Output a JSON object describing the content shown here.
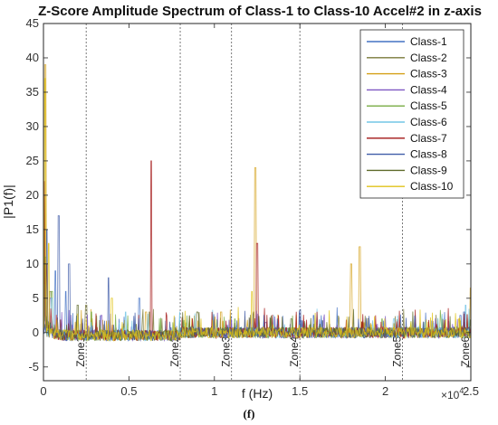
{
  "chart_data": {
    "type": "line",
    "title": "Z-Score Amplitude Spectrum of Class-1 to Class-10 Accel#2 in z-axis",
    "xlabel": "f (Hz)",
    "ylabel": "|P1(f)|",
    "x_multiplier": "×10",
    "x_multiplier_exp": "4",
    "xlim": [
      0,
      2.5
    ],
    "ylim": [
      -7,
      45
    ],
    "xticks": [
      0,
      0.5,
      1,
      1.5,
      2,
      2.5
    ],
    "xtick_labels": [
      "0",
      "0.5",
      "1",
      "1.5",
      "2",
      "2.5"
    ],
    "yticks": [
      -5,
      0,
      5,
      10,
      15,
      20,
      25,
      30,
      35,
      40,
      45
    ],
    "ytick_labels": [
      "-5",
      "0",
      "5",
      "10",
      "15",
      "20",
      "25",
      "30",
      "35",
      "40",
      "45"
    ],
    "grid": false,
    "legend_position": "top-right",
    "zones": [
      {
        "label": "Zone1",
        "x": 0.25
      },
      {
        "label": "Zone2",
        "x": 0.8
      },
      {
        "label": "Zone3",
        "x": 1.1
      },
      {
        "label": "Zone4",
        "x": 1.5
      },
      {
        "label": "Zone5",
        "x": 2.1
      },
      {
        "label": "Zone6",
        "x": 2.5
      }
    ],
    "series": [
      {
        "name": "Class-1",
        "color": "#4472c4",
        "peaks": [
          [
            0.002,
            12
          ],
          [
            0.07,
            9
          ],
          [
            0.13,
            6
          ],
          [
            0.56,
            5
          ],
          [
            1.58,
            2.5
          ],
          [
            2.44,
            2.5
          ]
        ]
      },
      {
        "name": "Class-2",
        "color": "#7a7a3a",
        "peaks": [
          [
            0.004,
            20
          ],
          [
            0.04,
            6
          ],
          [
            0.25,
            4
          ],
          [
            0.62,
            3
          ],
          [
            1.23,
            3
          ],
          [
            1.9,
            2
          ]
        ]
      },
      {
        "name": "Class-3",
        "color": "#d4a017",
        "peaks": [
          [
            0.01,
            39
          ],
          [
            0.6,
            3
          ],
          [
            1.04,
            3
          ],
          [
            1.24,
            24
          ],
          [
            1.8,
            10
          ],
          [
            1.85,
            12.5
          ],
          [
            2.5,
            6.5
          ]
        ]
      },
      {
        "name": "Class-4",
        "color": "#7e57c2",
        "peaks": [
          [
            0.003,
            8
          ],
          [
            0.04,
            5
          ],
          [
            0.34,
            2.5
          ],
          [
            1.3,
            1.5
          ]
        ]
      },
      {
        "name": "Class-5",
        "color": "#77ab43",
        "peaks": [
          [
            0.008,
            10
          ],
          [
            0.05,
            6
          ],
          [
            0.28,
            3
          ],
          [
            1.12,
            2
          ],
          [
            1.98,
            2
          ]
        ]
      },
      {
        "name": "Class-6",
        "color": "#74c6e6",
        "peaks": [
          [
            0.005,
            7
          ],
          [
            0.05,
            5
          ],
          [
            0.48,
            3
          ],
          [
            2.05,
            2
          ],
          [
            2.47,
            4
          ]
        ]
      },
      {
        "name": "Class-7",
        "color": "#a31515",
        "peaks": [
          [
            0.006,
            22
          ],
          [
            0.02,
            10
          ],
          [
            0.63,
            25
          ],
          [
            1.25,
            13
          ]
        ]
      },
      {
        "name": "Class-8",
        "color": "#3f5ca8",
        "peaks": [
          [
            0.02,
            15
          ],
          [
            0.09,
            17
          ],
          [
            0.15,
            10
          ],
          [
            0.38,
            8
          ],
          [
            2.46,
            3
          ]
        ]
      },
      {
        "name": "Class-9",
        "color": "#5f6b2a",
        "peaks": [
          [
            0.01,
            11
          ],
          [
            0.2,
            4
          ],
          [
            0.9,
            3
          ],
          [
            1.45,
            2
          ]
        ]
      },
      {
        "name": "Class-10",
        "color": "#e0c31a",
        "peaks": [
          [
            0.009,
            37
          ],
          [
            0.03,
            13
          ],
          [
            0.4,
            5
          ],
          [
            1.22,
            6
          ],
          [
            2.43,
            2
          ]
        ]
      }
    ]
  },
  "caption": "(f)"
}
